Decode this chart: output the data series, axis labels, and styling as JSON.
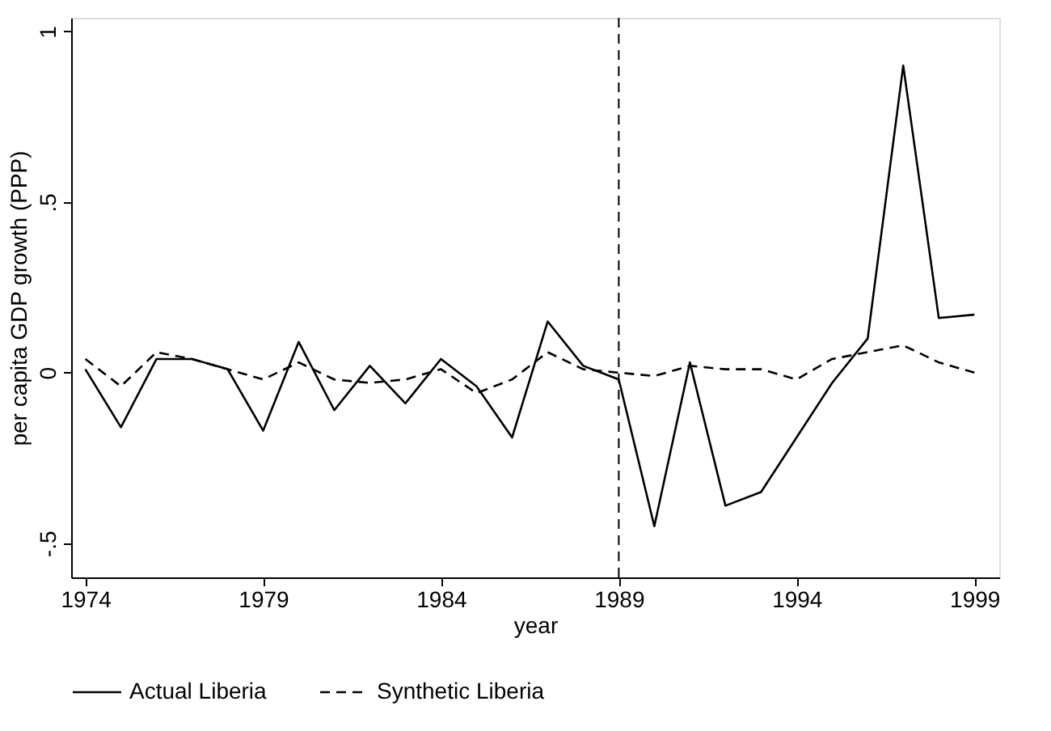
{
  "chart_data": {
    "type": "line",
    "xlabel": "year",
    "ylabel": "per capita GDP growth  (PPP)",
    "x": [
      1974,
      1975,
      1976,
      1977,
      1978,
      1979,
      1980,
      1981,
      1982,
      1983,
      1984,
      1985,
      1986,
      1987,
      1988,
      1989,
      1990,
      1991,
      1992,
      1993,
      1994,
      1995,
      1996,
      1997,
      1998,
      1999
    ],
    "series": [
      {
        "name": "Actual Liberia",
        "color": "#000000",
        "line_style": "solid",
        "values": [
          0.01,
          -0.16,
          0.04,
          0.04,
          0.01,
          -0.17,
          0.09,
          -0.11,
          0.02,
          -0.09,
          0.04,
          -0.04,
          -0.19,
          0.15,
          0.02,
          -0.02,
          -0.45,
          0.03,
          -0.39,
          -0.35,
          -0.19,
          -0.03,
          0.1,
          0.9,
          0.16,
          0.17
        ]
      },
      {
        "name": "Synthetic Liberia",
        "color": "#000000",
        "line_style": "dashed",
        "values": [
          0.04,
          -0.04,
          0.06,
          0.04,
          0.01,
          -0.02,
          0.03,
          -0.02,
          -0.03,
          -0.02,
          0.01,
          -0.06,
          -0.02,
          0.06,
          0.01,
          0.0,
          -0.01,
          0.02,
          0.01,
          0.01,
          -0.02,
          0.04,
          0.06,
          0.08,
          0.03,
          0.0
        ]
      }
    ],
    "xlim": [
      1973.6,
      1999.7
    ],
    "xticks": [
      1974,
      1979,
      1984,
      1989,
      1994,
      1999
    ],
    "ylim": [
      -0.6,
      1.04
    ],
    "yticks": [
      {
        "value": -0.5,
        "label": "-.5"
      },
      0,
      {
        "value": 0.5,
        "label": ".5"
      },
      1
    ],
    "ref_lines": [
      {
        "axis": "x",
        "value": 1989,
        "line_style": "dashed",
        "color": "#000000"
      }
    ],
    "grid": false,
    "legend": "bottom"
  }
}
